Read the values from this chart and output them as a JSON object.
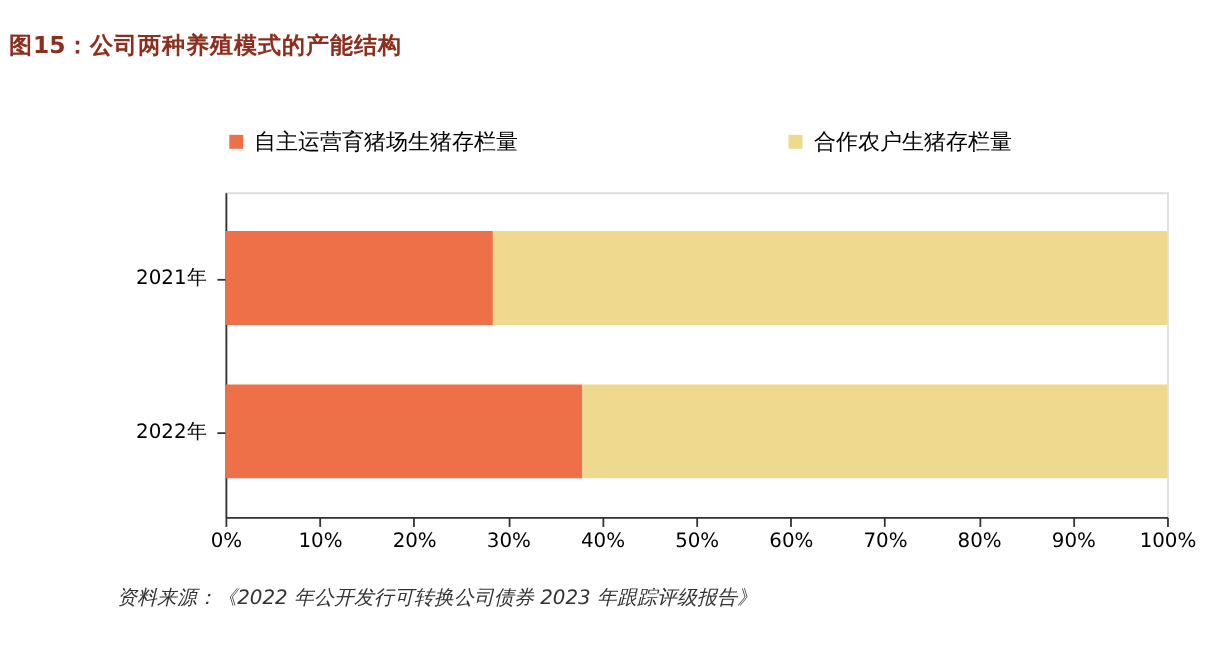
{
  "chart_data": {
    "type": "bar",
    "orientation": "horizontal",
    "stacked": true,
    "title": "图15：公司两种养殖模式的产能结构",
    "categories": [
      "2021年",
      "2022年"
    ],
    "series": [
      {
        "name": "自主运营育猪场生猪存栏量",
        "color": "#ed7049",
        "values": [
          28.4,
          37.9
        ]
      },
      {
        "name": "合作农户生猪存栏量",
        "color": "#eed98e",
        "values": [
          71.6,
          62.1
        ]
      }
    ],
    "xlim": [
      0,
      100
    ],
    "xticks": [
      {
        "value": 0,
        "label": "0%"
      },
      {
        "value": 10,
        "label": "10%"
      },
      {
        "value": 20,
        "label": "20%"
      },
      {
        "value": 30,
        "label": "30%"
      },
      {
        "value": 40,
        "label": "40%"
      },
      {
        "value": 50,
        "label": "50%"
      },
      {
        "value": 60,
        "label": "60%"
      },
      {
        "value": 70,
        "label": "70%"
      },
      {
        "value": 80,
        "label": "80%"
      },
      {
        "value": 90,
        "label": "90%"
      },
      {
        "value": 100,
        "label": "100%"
      }
    ],
    "legend": "top",
    "grid": false,
    "annotations": [
      "资料来源：《2022 年公开发行可转换公司债券 2023 年跟踪评级报告》"
    ]
  }
}
